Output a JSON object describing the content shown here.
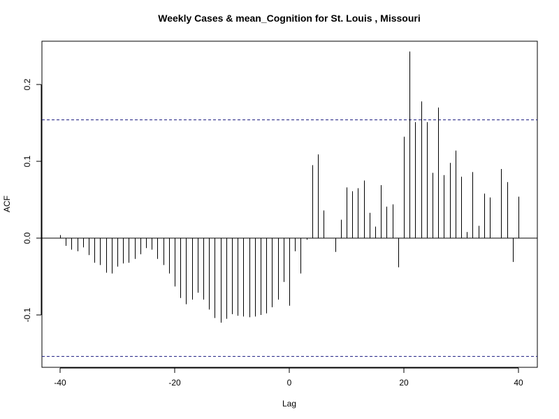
{
  "chart_data": {
    "type": "bar",
    "title": "Weekly Cases & mean_Cognition for St. Louis , Missouri",
    "xlabel": "Lag",
    "ylabel": "ACF",
    "xlim": [
      -40,
      40
    ],
    "ylim": [
      -0.17,
      0.255
    ],
    "x_ticks": [
      {
        "value": -40,
        "label": "-40"
      },
      {
        "value": -20,
        "label": "-20"
      },
      {
        "value": 0,
        "label": "0"
      },
      {
        "value": 20,
        "label": "20"
      },
      {
        "value": 40,
        "label": "40"
      }
    ],
    "y_ticks": [
      {
        "value": -0.1,
        "label": "-0.1"
      },
      {
        "value": 0.0,
        "label": "0.0"
      },
      {
        "value": 0.1,
        "label": "0.1"
      },
      {
        "value": 0.2,
        "label": "0.2"
      }
    ],
    "confidence_bounds": [
      0.154,
      -0.154
    ],
    "line_color": "#000000",
    "bound_color": "#1a1a80",
    "lags": [
      -40,
      -39,
      -38,
      -37,
      -36,
      -35,
      -34,
      -33,
      -32,
      -31,
      -30,
      -29,
      -28,
      -27,
      -26,
      -25,
      -24,
      -23,
      -22,
      -21,
      -20,
      -19,
      -18,
      -17,
      -16,
      -15,
      -14,
      -13,
      -12,
      -11,
      -10,
      -9,
      -8,
      -7,
      -6,
      -5,
      -4,
      -3,
      -2,
      -1,
      0,
      1,
      2,
      3,
      4,
      5,
      6,
      7,
      8,
      9,
      10,
      11,
      12,
      13,
      14,
      15,
      16,
      17,
      18,
      19,
      20,
      21,
      22,
      23,
      24,
      25,
      26,
      27,
      28,
      29,
      30,
      31,
      32,
      33,
      34,
      35,
      36,
      37,
      38,
      39,
      40
    ],
    "values": [
      0.004,
      -0.01,
      -0.015,
      -0.017,
      -0.012,
      -0.022,
      -0.032,
      -0.035,
      -0.045,
      -0.046,
      -0.037,
      -0.033,
      -0.032,
      -0.027,
      -0.021,
      -0.013,
      -0.015,
      -0.027,
      -0.035,
      -0.046,
      -0.063,
      -0.078,
      -0.086,
      -0.08,
      -0.071,
      -0.08,
      -0.093,
      -0.104,
      -0.11,
      -0.105,
      -0.099,
      -0.101,
      -0.102,
      -0.103,
      -0.102,
      -0.1,
      -0.098,
      -0.09,
      -0.08,
      -0.057,
      -0.088,
      -0.017,
      -0.046,
      -0.002,
      0.095,
      0.109,
      0.036,
      0.0,
      -0.018,
      0.024,
      0.066,
      0.061,
      0.065,
      0.075,
      0.033,
      0.015,
      0.069,
      0.041,
      0.044,
      -0.038,
      0.132,
      0.243,
      0.151,
      0.178,
      0.151,
      0.085,
      0.17,
      0.082,
      0.098,
      0.114,
      0.08,
      0.008,
      0.086,
      0.016,
      0.058,
      0.053,
      0.0,
      0.09,
      0.073,
      -0.031,
      0.054
    ]
  }
}
